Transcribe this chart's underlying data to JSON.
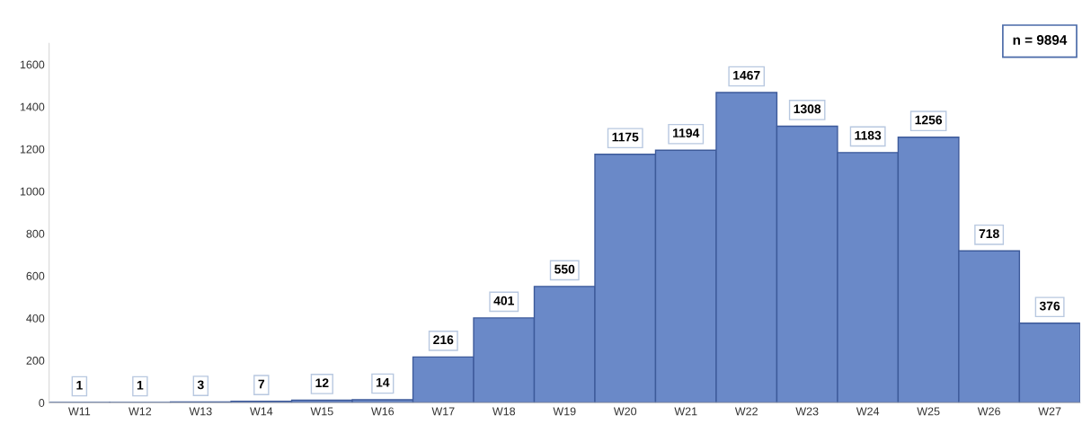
{
  "chart_data": {
    "type": "bar",
    "categories": [
      "W11",
      "W12",
      "W13",
      "W14",
      "W15",
      "W16",
      "W17",
      "W18",
      "W19",
      "W20",
      "W21",
      "W22",
      "W23",
      "W24",
      "W25",
      "W26",
      "W27"
    ],
    "values": [
      1,
      1,
      3,
      7,
      12,
      14,
      216,
      401,
      550,
      1175,
      1194,
      1467,
      1308,
      1183,
      1256,
      718,
      376
    ],
    "color": "#6a89c8",
    "ylim": [
      0,
      1700
    ],
    "yticks": [
      0,
      200,
      400,
      600,
      800,
      1000,
      1200,
      1400,
      1600
    ],
    "data_labels": true,
    "grid": false,
    "annotations": [
      "n = 9894"
    ]
  }
}
